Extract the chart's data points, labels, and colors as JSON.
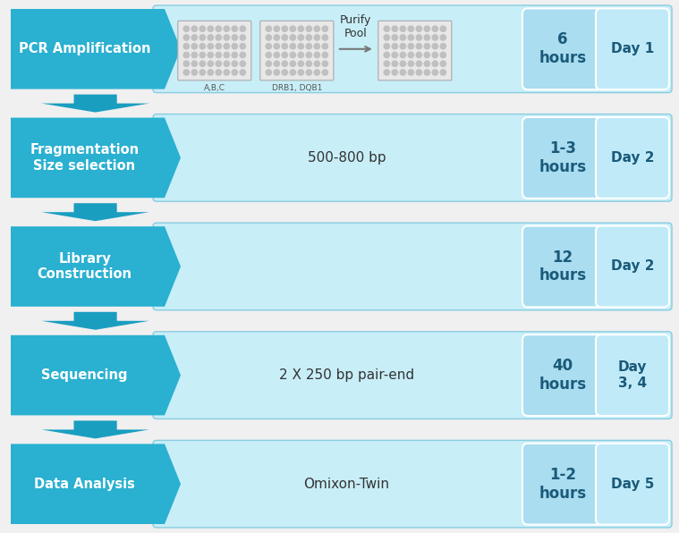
{
  "background_color": "#f0f0f0",
  "rows": [
    {
      "step_label": "PCR Amplification",
      "time_label": "6\nhours",
      "day_label": "Day 1",
      "content_text": "Purify\nPool",
      "has_plates": true,
      "arrow_below": true
    },
    {
      "step_label": "Fragmentation\nSize selection",
      "time_label": "1-3\nhours",
      "day_label": "Day 2",
      "content_text": "500-800 bp",
      "has_plates": false,
      "arrow_below": true
    },
    {
      "step_label": "Library\nConstruction",
      "time_label": "12\nhours",
      "day_label": "Day 2",
      "content_text": "",
      "has_plates": false,
      "arrow_below": true
    },
    {
      "step_label": "Sequencing",
      "time_label": "40\nhours",
      "day_label": "Day\n3, 4",
      "content_text": "2 X 250 bp pair-end",
      "has_plates": false,
      "arrow_below": true
    },
    {
      "step_label": "Data Analysis",
      "time_label": "1-2\nhours",
      "day_label": "Day 5",
      "content_text": "Omixon-Twin",
      "has_plates": false,
      "arrow_below": false
    }
  ],
  "step_box_color": "#2ab0d0",
  "step_box_color_dark": "#1890b0",
  "banner_color": "#c8eef8",
  "banner_stroke": "#88cce0",
  "time_box_color": "#aaddf0",
  "day_box_color": "#c0eaf8",
  "arrow_color": "#1a9ec0",
  "step_text_color": "#ffffff",
  "content_text_color": "#333333",
  "time_text_color": "#1a5a7a",
  "day_text_color": "#1a5a7a",
  "plate_labels": [
    "A,B,C",
    "DRB1, DQB1"
  ],
  "figure_width": 7.59,
  "figure_height": 5.96,
  "dpi": 100
}
